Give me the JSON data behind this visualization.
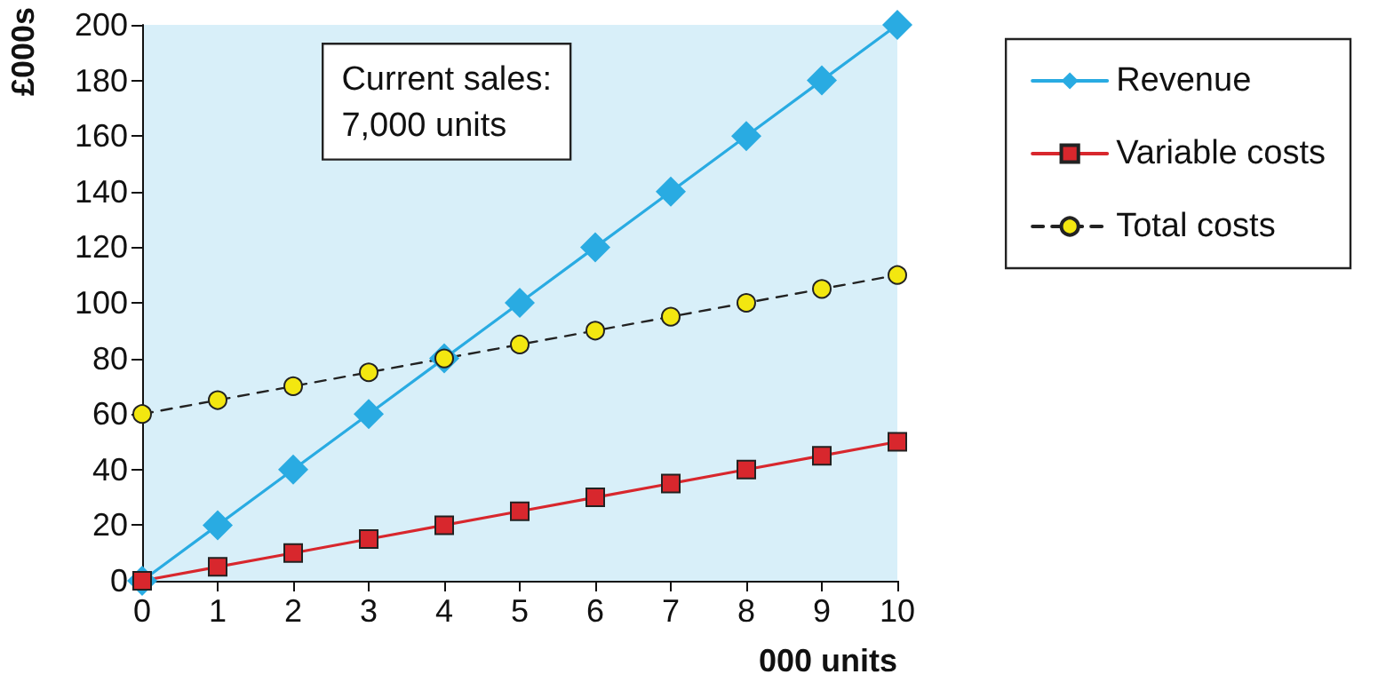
{
  "chart_data": {
    "type": "line",
    "ylabel": "£000s",
    "xlabel": "000 units",
    "annotations": [
      "Current sales:\n7,000 units"
    ],
    "x": [
      0,
      1,
      2,
      3,
      4,
      5,
      6,
      7,
      8,
      9,
      10
    ],
    "series": [
      {
        "name": "Revenue",
        "color": "#29abe2",
        "marker": "diamond",
        "line_style": "solid",
        "values": [
          0,
          20,
          40,
          60,
          80,
          100,
          120,
          140,
          160,
          180,
          200
        ]
      },
      {
        "name": "Variable costs",
        "color": "#d8272d",
        "marker": "square",
        "line_style": "solid",
        "values": [
          0,
          5,
          10,
          15,
          20,
          25,
          30,
          35,
          40,
          45,
          50
        ]
      },
      {
        "name": "Total costs",
        "color": "#f3e710",
        "marker": "circle",
        "line_style": "dashed",
        "values": [
          60,
          65,
          70,
          75,
          80,
          85,
          90,
          95,
          100,
          105,
          110
        ]
      }
    ],
    "xlim": [
      0,
      10
    ],
    "xticks": [
      0,
      1,
      2,
      3,
      4,
      5,
      6,
      7,
      8,
      9,
      10
    ],
    "ylim": [
      0,
      200
    ],
    "yticks": [
      0,
      20,
      40,
      60,
      80,
      100,
      120,
      140,
      160,
      180,
      200
    ],
    "grid": false,
    "legend": "right"
  }
}
